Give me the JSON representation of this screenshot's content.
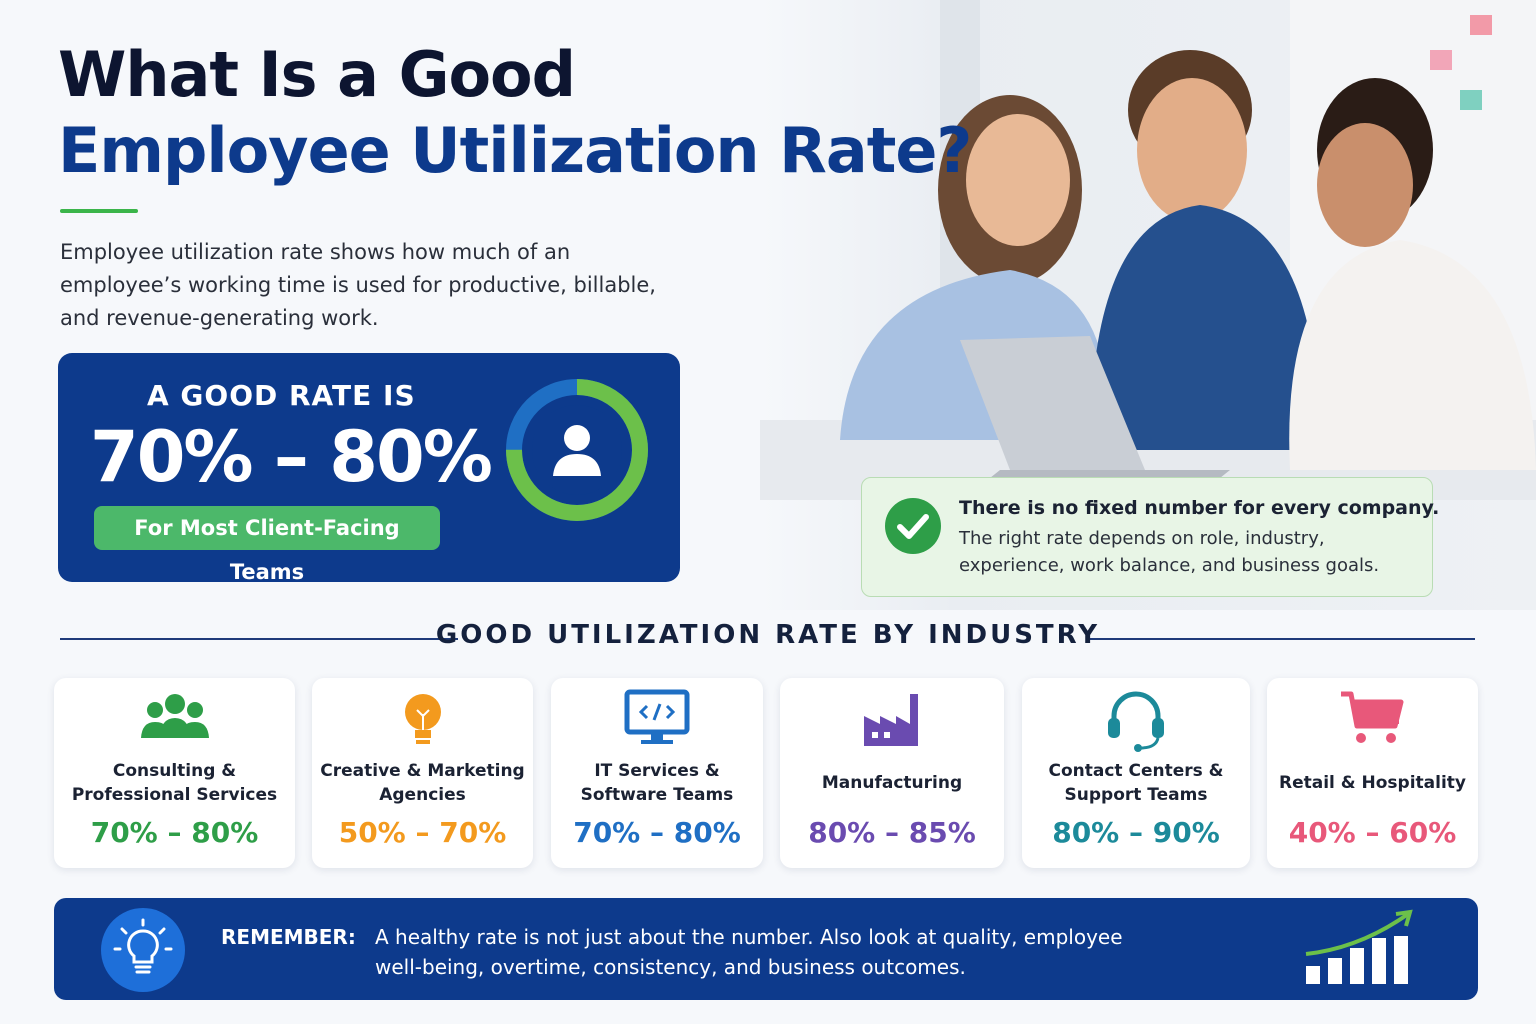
{
  "header": {
    "title_line1": "What Is a Good",
    "title_line2": "Employee Utilization Rate?"
  },
  "intro": "Employee utilization rate shows how much of an employee’s working time is used for productive, billable, and revenue-generating work.",
  "highlight": {
    "label": "A GOOD RATE IS",
    "range": "70% – 80%",
    "badge": "For Most Client-Facing Teams"
  },
  "note": {
    "title": "There is no fixed number for every company.",
    "body": "The right rate depends on role, industry, experience, work balance, and business goals."
  },
  "section_title": "GOOD UTILIZATION RATE BY INDUSTRY",
  "industries": [
    {
      "name": "Consulting & Professional Services",
      "range": "70% – 80%",
      "color": "#2e9e48"
    },
    {
      "name": "Creative & Marketing Agencies",
      "range": "50% – 70%",
      "color": "#f39a1e"
    },
    {
      "name": "IT Services & Software Teams",
      "range": "70% – 80%",
      "color": "#1f6fc4"
    },
    {
      "name": "Manufacturing",
      "range": "80% – 85%",
      "color": "#6a4bb0"
    },
    {
      "name": "Contact Centers & Support Teams",
      "range": "80% – 90%",
      "color": "#1c8a9a"
    },
    {
      "name": "Retail & Hospitality",
      "range": "40% – 60%",
      "color": "#e8587a"
    }
  ],
  "remember": {
    "label": "REMEMBER:",
    "text": "A healthy rate is not just about the number. Also look at quality, employee well-being, overtime, consistency, and business outcomes."
  }
}
